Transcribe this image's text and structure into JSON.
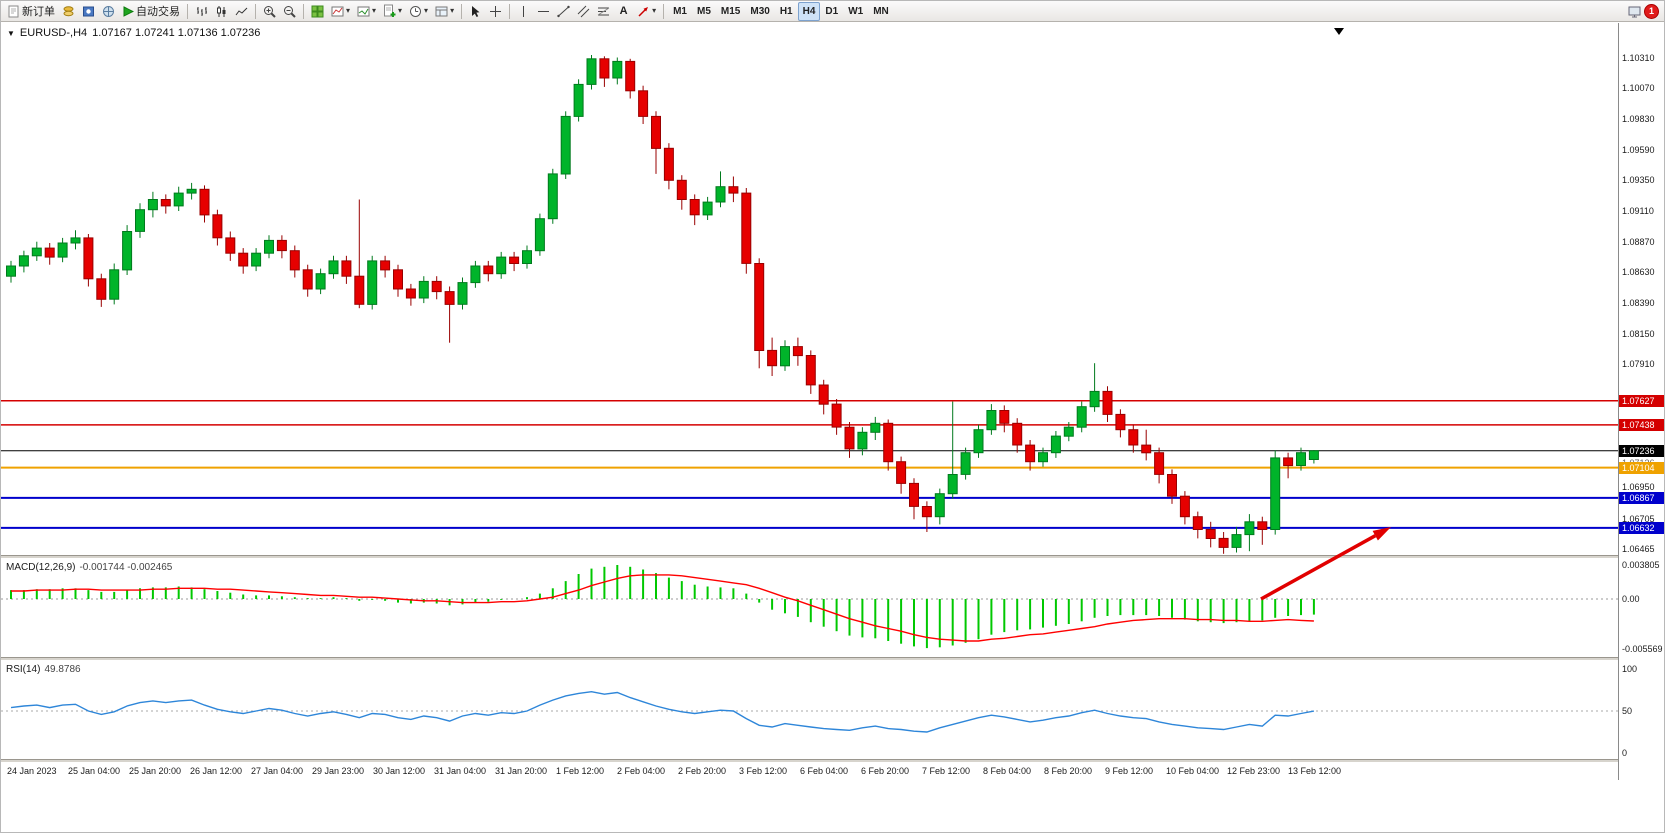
{
  "toolbar": {
    "new_order": "新订单",
    "autotrade": "自动交易",
    "text_tool": "A",
    "timeframes": [
      "M1",
      "M5",
      "M15",
      "M30",
      "H1",
      "H4",
      "D1",
      "W1",
      "MN"
    ],
    "active_timeframe": "H4",
    "notification_count": "1"
  },
  "chart": {
    "title": "EURUSD-,H4",
    "ohlc": "1.07167 1.07241 1.07136 1.07236",
    "symbol_marker": "▼",
    "scroll_marker": "▼"
  },
  "price_axis": {
    "ticks": [
      1.1031,
      1.1007,
      1.0983,
      1.0959,
      1.0935,
      1.0911,
      1.0887,
      1.0863,
      1.0839,
      1.0815,
      1.0791,
      1.0695,
      1.06705,
      1.06465
    ],
    "low_label": {
      "text": "1.07136",
      "price": 1.07136
    },
    "line_labels": [
      {
        "text": "1.07627",
        "price": 1.07627,
        "color": "#d40000",
        "width": 1.5,
        "dashed": false
      },
      {
        "text": "1.07438",
        "price": 1.07438,
        "color": "#d40000",
        "width": 1.5,
        "dashed": false
      },
      {
        "text": "1.07236",
        "price": 1.07236,
        "color": "#000000",
        "width": 1,
        "dashed": false
      },
      {
        "text": "1.07104",
        "price": 1.07104,
        "color": "#efa200",
        "width": 2,
        "dashed": false
      },
      {
        "text": "1.06867",
        "price": 1.06867,
        "color": "#0000cc",
        "width": 2,
        "dashed": false
      },
      {
        "text": "1.06632",
        "price": 1.06632,
        "color": "#0000cc",
        "width": 2,
        "dashed": false
      }
    ]
  },
  "macd": {
    "label": "MACD(12,26,9)",
    "values_text": "-0.001744 -0.002465",
    "axis": [
      {
        "text": "0.003805",
        "value": 0.003805
      },
      {
        "text": "0.00",
        "value": 0
      },
      {
        "text": "-0.005569",
        "value": -0.005569
      }
    ]
  },
  "rsi": {
    "label": "RSI(14)",
    "value_text": "49.8786",
    "axis": [
      {
        "text": "100",
        "value": 100
      },
      {
        "text": "50",
        "value": 50
      },
      {
        "text": "0",
        "value": 0
      }
    ]
  },
  "time_axis": [
    "24 Jan 2023",
    "25 Jan 04:00",
    "25 Jan 20:00",
    "26 Jan 12:00",
    "27 Jan 04:00",
    "29 Jan 23:00",
    "30 Jan 12:00",
    "31 Jan 04:00",
    "31 Jan 20:00",
    "1 Feb 12:00",
    "2 Feb 04:00",
    "2 Feb 20:00",
    "3 Feb 12:00",
    "6 Feb 04:00",
    "6 Feb 20:00",
    "7 Feb 12:00",
    "8 Feb 04:00",
    "8 Feb 20:00",
    "9 Feb 12:00",
    "10 Feb 04:00",
    "12 Feb 23:00",
    "13 Feb 12:00"
  ],
  "chart_data": {
    "type": "candlestick",
    "title": "EURUSD-,H4",
    "ylim": [
      1.0617,
      1.1058
    ],
    "candles": [
      [
        1.086,
        1.0872,
        1.0855,
        1.0868
      ],
      [
        1.0868,
        1.088,
        1.0863,
        1.0876
      ],
      [
        1.0876,
        1.0887,
        1.0872,
        1.0882
      ],
      [
        1.0882,
        1.0886,
        1.0869,
        1.0875
      ],
      [
        1.0875,
        1.089,
        1.0871,
        1.0886
      ],
      [
        1.0886,
        1.0896,
        1.0881,
        1.089
      ],
      [
        1.089,
        1.0893,
        1.0852,
        1.0858
      ],
      [
        1.0858,
        1.0862,
        1.0836,
        1.0842
      ],
      [
        1.0842,
        1.087,
        1.0838,
        1.0865
      ],
      [
        1.0865,
        1.09,
        1.0861,
        1.0895
      ],
      [
        1.0895,
        1.0917,
        1.089,
        1.0912
      ],
      [
        1.0912,
        1.0926,
        1.0906,
        1.092
      ],
      [
        1.092,
        1.0924,
        1.0909,
        1.0915
      ],
      [
        1.0915,
        1.093,
        1.0911,
        1.0925
      ],
      [
        1.0925,
        1.0933,
        1.092,
        1.0928
      ],
      [
        1.0928,
        1.0931,
        1.0902,
        1.0908
      ],
      [
        1.0908,
        1.0912,
        1.0884,
        1.089
      ],
      [
        1.089,
        1.0895,
        1.0872,
        1.0878
      ],
      [
        1.0878,
        1.0882,
        1.0862,
        1.0868
      ],
      [
        1.0868,
        1.0882,
        1.0864,
        1.0878
      ],
      [
        1.0878,
        1.0892,
        1.0874,
        1.0888
      ],
      [
        1.0888,
        1.0892,
        1.0874,
        1.088
      ],
      [
        1.088,
        1.0884,
        1.0859,
        1.0865
      ],
      [
        1.0865,
        1.0869,
        1.0844,
        1.085
      ],
      [
        1.085,
        1.0866,
        1.0846,
        1.0862
      ],
      [
        1.0862,
        1.0876,
        1.0858,
        1.0872
      ],
      [
        1.0872,
        1.0876,
        1.0854,
        1.086
      ],
      [
        1.086,
        1.092,
        1.0835,
        1.0838
      ],
      [
        1.0838,
        1.0876,
        1.0834,
        1.0872
      ],
      [
        1.0872,
        1.0876,
        1.0859,
        1.0865
      ],
      [
        1.0865,
        1.0869,
        1.0844,
        1.085
      ],
      [
        1.085,
        1.0854,
        1.0837,
        1.0843
      ],
      [
        1.0843,
        1.086,
        1.0839,
        1.0856
      ],
      [
        1.0856,
        1.086,
        1.0842,
        1.0848
      ],
      [
        1.0848,
        1.0852,
        1.0808,
        1.0838
      ],
      [
        1.0838,
        1.0859,
        1.0834,
        1.0855
      ],
      [
        1.0855,
        1.0872,
        1.0851,
        1.0868
      ],
      [
        1.0868,
        1.0872,
        1.0856,
        1.0862
      ],
      [
        1.0862,
        1.0879,
        1.0858,
        1.0875
      ],
      [
        1.0875,
        1.0879,
        1.0864,
        1.087
      ],
      [
        1.087,
        1.0884,
        1.0866,
        1.088
      ],
      [
        1.088,
        1.0909,
        1.0876,
        1.0905
      ],
      [
        1.0905,
        1.0944,
        1.0901,
        1.094
      ],
      [
        1.094,
        1.0989,
        1.0936,
        1.0985
      ],
      [
        1.0985,
        1.1014,
        1.0981,
        1.101
      ],
      [
        1.101,
        1.1033,
        1.1006,
        1.103
      ],
      [
        1.103,
        1.1032,
        1.1008,
        1.1015
      ],
      [
        1.1015,
        1.1031,
        1.101,
        1.1028
      ],
      [
        1.1028,
        1.103,
        1.0999,
        1.1005
      ],
      [
        1.1005,
        1.1009,
        1.0979,
        1.0985
      ],
      [
        1.0985,
        1.0989,
        1.094,
        1.096
      ],
      [
        1.096,
        1.0964,
        1.0928,
        1.0935
      ],
      [
        1.0935,
        1.0939,
        1.0912,
        1.092
      ],
      [
        1.092,
        1.0924,
        1.09,
        1.0908
      ],
      [
        1.0908,
        1.0922,
        1.0904,
        1.0918
      ],
      [
        1.0918,
        1.0942,
        1.0914,
        1.093
      ],
      [
        1.093,
        1.0938,
        1.0918,
        1.0925
      ],
      [
        1.0925,
        1.0929,
        1.0862,
        1.087
      ],
      [
        1.087,
        1.0874,
        1.0788,
        1.0802
      ],
      [
        1.0802,
        1.0812,
        1.0782,
        1.079
      ],
      [
        1.079,
        1.081,
        1.0786,
        1.0805
      ],
      [
        1.0805,
        1.0812,
        1.079,
        1.0798
      ],
      [
        1.0798,
        1.0802,
        1.0768,
        1.0775
      ],
      [
        1.0775,
        1.0779,
        1.0752,
        1.076
      ],
      [
        1.076,
        1.0764,
        1.0736,
        1.0742
      ],
      [
        1.0742,
        1.0746,
        1.0718,
        1.0725
      ],
      [
        1.0725,
        1.0742,
        1.072,
        1.0738
      ],
      [
        1.0738,
        1.075,
        1.0732,
        1.0745
      ],
      [
        1.0745,
        1.0748,
        1.0708,
        1.0715
      ],
      [
        1.0715,
        1.0719,
        1.069,
        1.0698
      ],
      [
        1.0698,
        1.0702,
        1.067,
        1.068
      ],
      [
        1.068,
        1.0684,
        1.066,
        1.0672
      ],
      [
        1.0672,
        1.0694,
        1.0666,
        1.069
      ],
      [
        1.069,
        1.0762,
        1.0686,
        1.0705
      ],
      [
        1.0705,
        1.0726,
        1.0701,
        1.0722
      ],
      [
        1.0722,
        1.0744,
        1.0718,
        1.074
      ],
      [
        1.074,
        1.076,
        1.0736,
        1.0755
      ],
      [
        1.0755,
        1.0759,
        1.0738,
        1.0745
      ],
      [
        1.0745,
        1.0749,
        1.0722,
        1.0728
      ],
      [
        1.0728,
        1.0732,
        1.0708,
        1.0715
      ],
      [
        1.0715,
        1.0726,
        1.0711,
        1.0722
      ],
      [
        1.0722,
        1.0739,
        1.0718,
        1.0735
      ],
      [
        1.0735,
        1.0746,
        1.0731,
        1.0742
      ],
      [
        1.0742,
        1.0762,
        1.0738,
        1.0758
      ],
      [
        1.0758,
        1.0792,
        1.0754,
        1.077
      ],
      [
        1.077,
        1.0774,
        1.0746,
        1.0752
      ],
      [
        1.0752,
        1.0756,
        1.0734,
        1.074
      ],
      [
        1.074,
        1.0744,
        1.0722,
        1.0728
      ],
      [
        1.0728,
        1.074,
        1.0716,
        1.0722
      ],
      [
        1.0722,
        1.0726,
        1.0698,
        1.0705
      ],
      [
        1.0705,
        1.0709,
        1.0682,
        1.0688
      ],
      [
        1.0688,
        1.0692,
        1.0666,
        1.0672
      ],
      [
        1.0672,
        1.0676,
        1.0655,
        1.0662
      ],
      [
        1.0662,
        1.0668,
        1.0648,
        1.0655
      ],
      [
        1.0655,
        1.066,
        1.0643,
        1.0648
      ],
      [
        1.0648,
        1.0664,
        1.0644,
        1.0658
      ],
      [
        1.0658,
        1.0674,
        1.0645,
        1.0668
      ],
      [
        1.0668,
        1.0672,
        1.065,
        1.0662
      ],
      [
        1.0662,
        1.0724,
        1.0658,
        1.0718
      ],
      [
        1.0718,
        1.0722,
        1.0702,
        1.0712
      ],
      [
        1.0712,
        1.0726,
        1.0708,
        1.0722
      ],
      [
        1.07167,
        1.07241,
        1.07136,
        1.07236
      ]
    ],
    "indicators": [
      {
        "name": "MACD(12,26,9)",
        "type": "bar",
        "ylim": [
          -0.005569,
          0.003805
        ],
        "values": [
          0.001,
          0.001,
          0.0011,
          0.0011,
          0.0012,
          0.0012,
          0.001,
          0.0008,
          0.0008,
          0.001,
          0.0012,
          0.0013,
          0.0013,
          0.0014,
          0.0013,
          0.0011,
          0.0009,
          0.0007,
          0.0005,
          0.0004,
          0.0004,
          0.0003,
          0.0002,
          0.0001,
          0.0001,
          0.0002,
          0.0001,
          -0.0002,
          -0.0001,
          -0.0002,
          -0.0004,
          -0.0005,
          -0.0004,
          -0.0005,
          -0.0007,
          -0.0006,
          -0.0004,
          -0.0003,
          -0.0001,
          0.0,
          0.0002,
          0.0006,
          0.0012,
          0.002,
          0.0028,
          0.0034,
          0.0036,
          0.0038,
          0.0036,
          0.0033,
          0.0029,
          0.0024,
          0.002,
          0.0016,
          0.0014,
          0.0013,
          0.0012,
          0.0006,
          -0.0004,
          -0.0012,
          -0.0016,
          -0.002,
          -0.0026,
          -0.0031,
          -0.0036,
          -0.0041,
          -0.0043,
          -0.0044,
          -0.0047,
          -0.005,
          -0.0053,
          -0.0055,
          -0.0054,
          -0.0052,
          -0.0049,
          -0.0045,
          -0.004,
          -0.0037,
          -0.0035,
          -0.0034,
          -0.0032,
          -0.003,
          -0.0028,
          -0.0025,
          -0.0021,
          -0.0019,
          -0.0018,
          -0.0018,
          -0.0018,
          -0.0019,
          -0.0021,
          -0.0023,
          -0.0025,
          -0.0026,
          -0.0027,
          -0.0026,
          -0.0025,
          -0.0024,
          -0.0021,
          -0.0019,
          -0.0018,
          -0.001744
        ],
        "signal": [
          0.0009,
          0.0009,
          0.001,
          0.001,
          0.001,
          0.0011,
          0.0011,
          0.001,
          0.001,
          0.001,
          0.001,
          0.0011,
          0.0011,
          0.0012,
          0.0012,
          0.0012,
          0.0011,
          0.0011,
          0.001,
          0.0009,
          0.0008,
          0.0007,
          0.0006,
          0.0005,
          0.0004,
          0.0004,
          0.0003,
          0.0002,
          0.0002,
          0.0001,
          0.0,
          -0.0001,
          -0.0002,
          -0.0002,
          -0.0003,
          -0.0004,
          -0.0004,
          -0.0004,
          -0.0003,
          -0.0003,
          -0.0002,
          0.0,
          0.0002,
          0.0006,
          0.001,
          0.0015,
          0.0019,
          0.0023,
          0.0026,
          0.0027,
          0.0027,
          0.0027,
          0.0026,
          0.0024,
          0.0022,
          0.002,
          0.0018,
          0.0016,
          0.0012,
          0.0007,
          0.0002,
          -0.0002,
          -0.0007,
          -0.0012,
          -0.0017,
          -0.0022,
          -0.0026,
          -0.003,
          -0.0033,
          -0.0036,
          -0.004,
          -0.0043,
          -0.0045,
          -0.0046,
          -0.0047,
          -0.0047,
          -0.0045,
          -0.0044,
          -0.0042,
          -0.004,
          -0.0039,
          -0.0037,
          -0.0035,
          -0.0033,
          -0.0031,
          -0.0028,
          -0.0026,
          -0.0024,
          -0.0023,
          -0.0022,
          -0.0022,
          -0.0022,
          -0.0023,
          -0.0023,
          -0.0024,
          -0.0024,
          -0.0025,
          -0.0025,
          -0.0024,
          -0.0023,
          -0.0024,
          -0.002465
        ]
      },
      {
        "name": "RSI(14)",
        "type": "line",
        "ylim": [
          0,
          100
        ],
        "values": [
          54,
          56,
          57,
          54,
          57,
          58,
          50,
          46,
          49,
          56,
          60,
          62,
          60,
          62,
          63,
          57,
          52,
          49,
          47,
          50,
          53,
          51,
          47,
          44,
          47,
          49,
          46,
          42,
          47,
          46,
          42,
          40,
          44,
          42,
          38,
          44,
          47,
          45,
          48,
          47,
          50,
          57,
          63,
          68,
          71,
          73,
          70,
          72,
          66,
          61,
          56,
          52,
          49,
          47,
          49,
          51,
          50,
          41,
          33,
          31,
          35,
          33,
          31,
          29,
          28,
          27,
          30,
          32,
          29,
          28,
          26,
          25,
          30,
          34,
          38,
          42,
          45,
          43,
          40,
          37,
          39,
          42,
          44,
          48,
          51,
          47,
          44,
          42,
          41,
          37,
          34,
          32,
          30,
          29,
          28,
          31,
          34,
          32,
          45,
          44,
          47,
          49.8786
        ]
      }
    ],
    "annotations": [
      {
        "type": "arrow",
        "color": "#e10000",
        "from": [
          1260,
          576
        ],
        "to": [
          1390,
          504
        ]
      }
    ]
  }
}
